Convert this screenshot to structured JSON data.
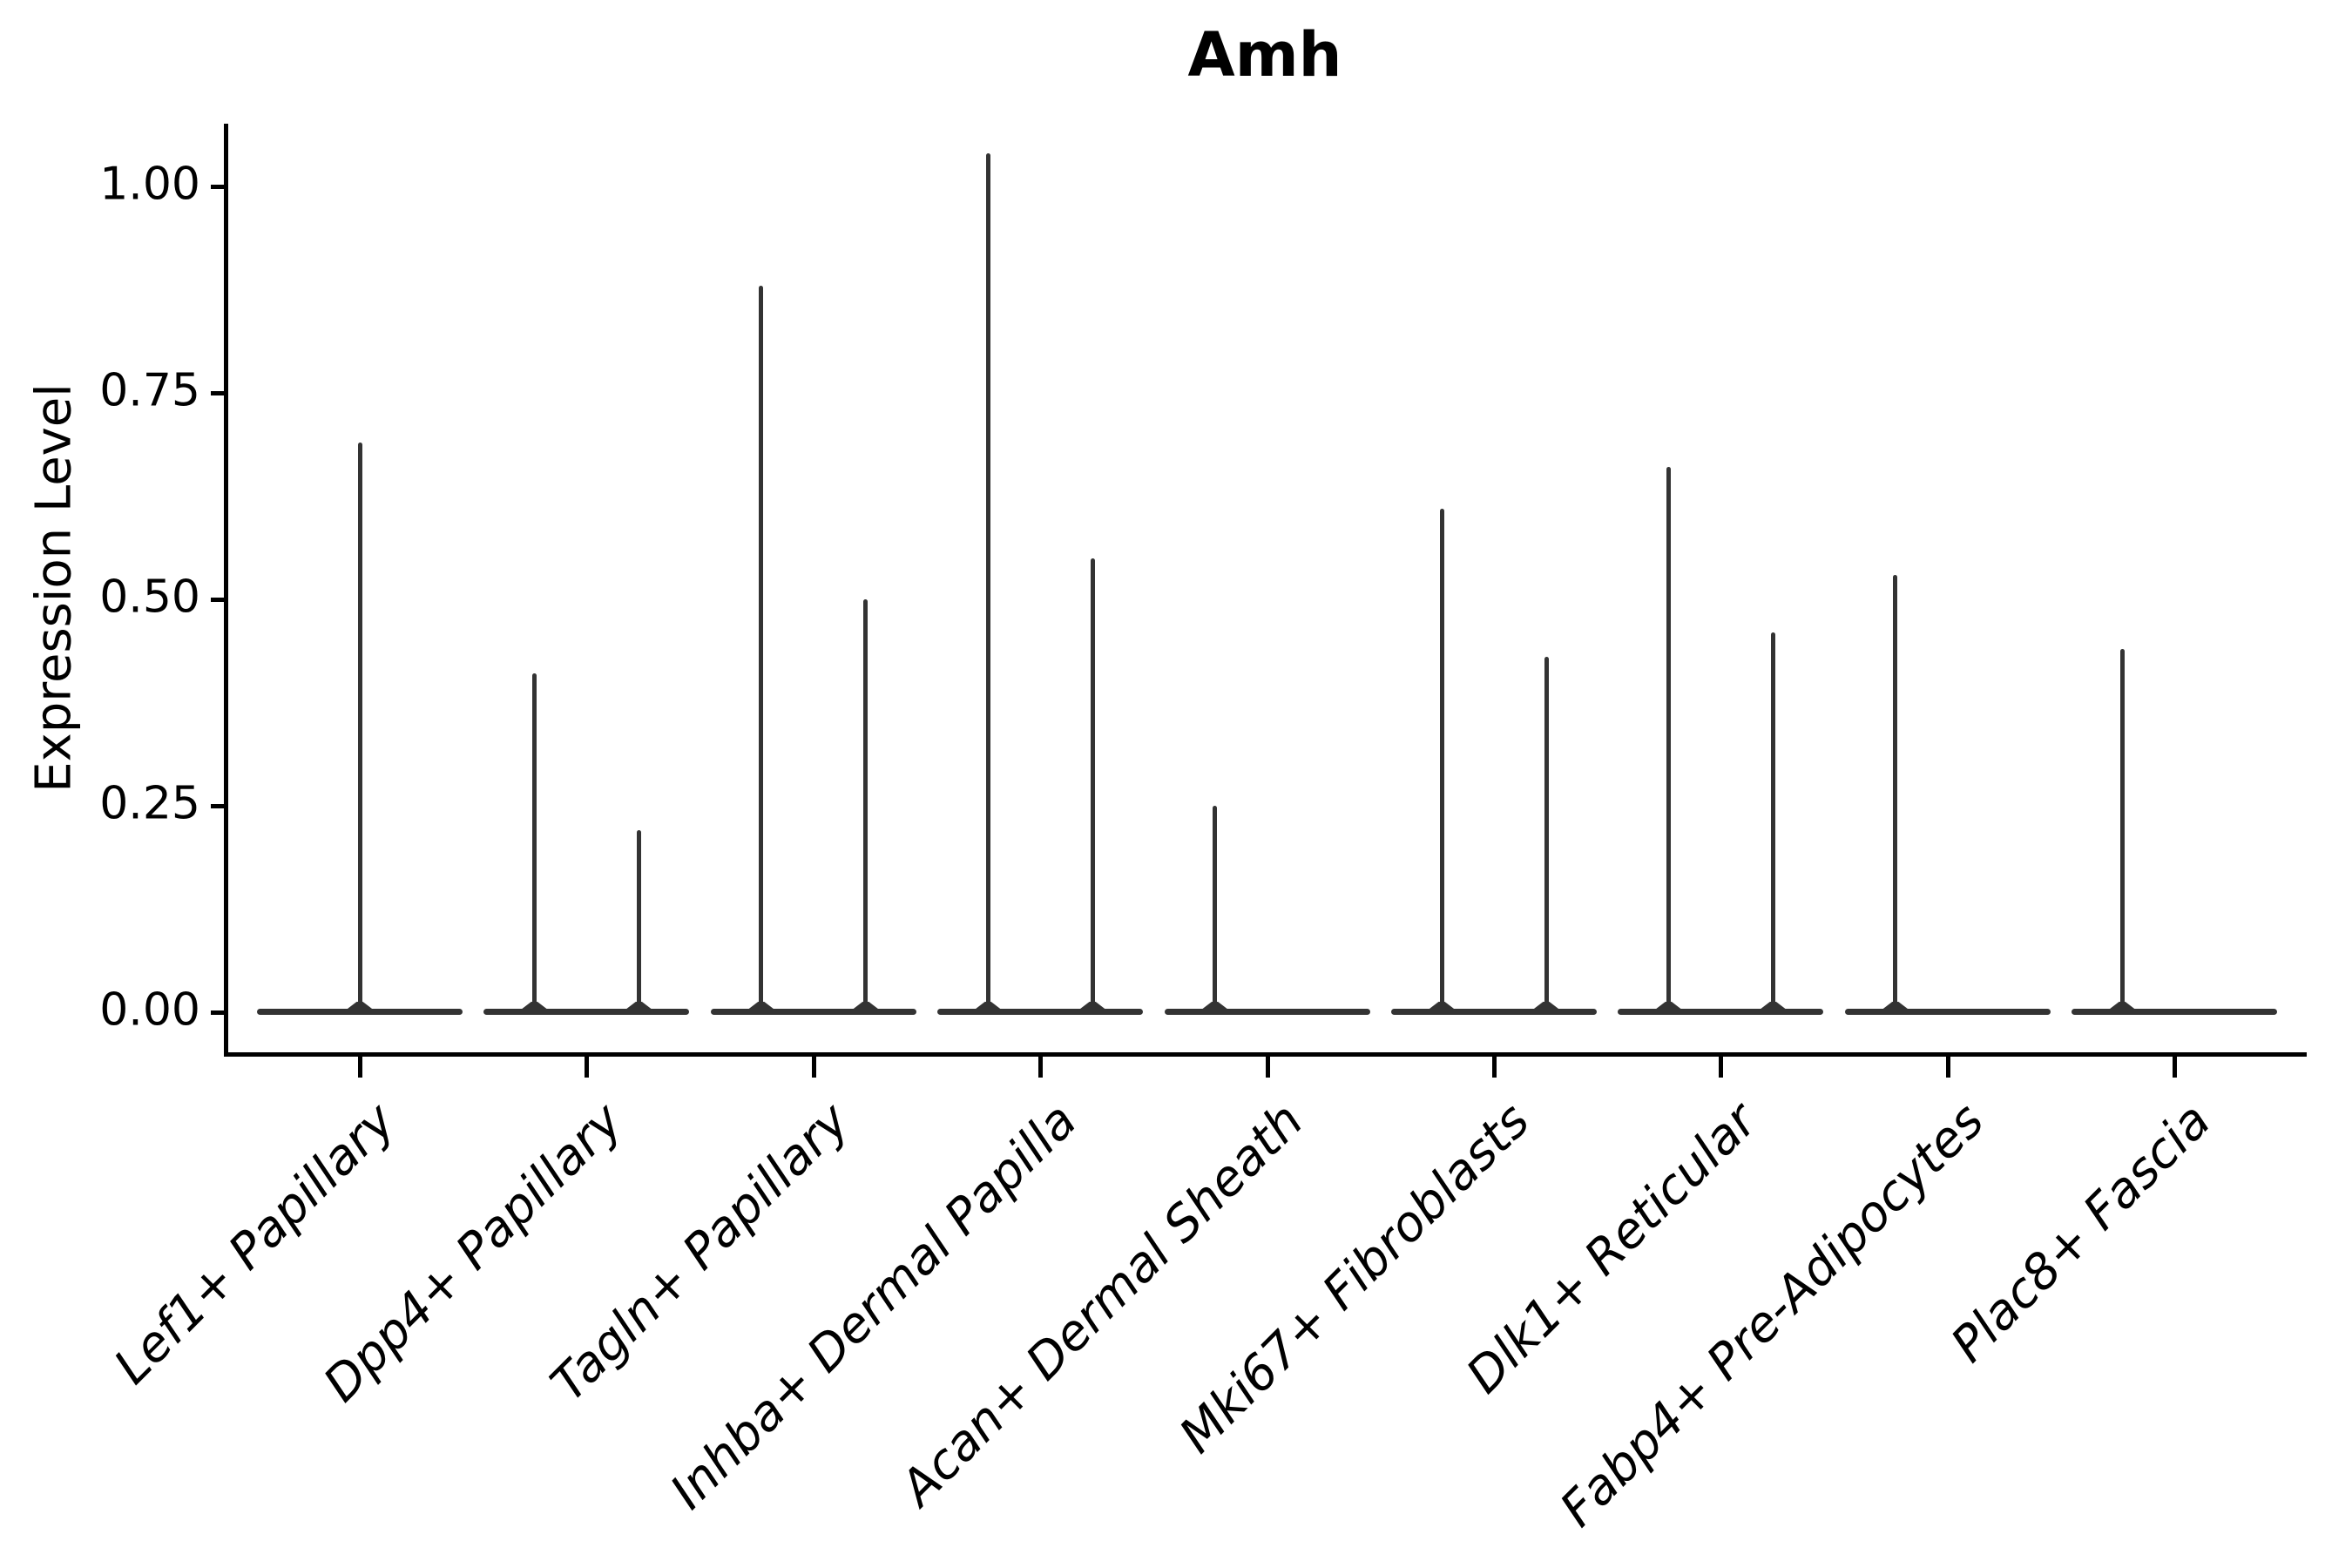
{
  "figure": {
    "title": "Amh",
    "y_axis_label": "Expression Level"
  },
  "chart_data": {
    "type": "violin",
    "title": "Amh",
    "xlabel": "",
    "ylabel": "Expression Level",
    "ylim": [
      -0.05,
      1.08
    ],
    "grid": false,
    "legend": "none",
    "violin_color": "#333333",
    "axis_color": "#000000",
    "yticks": [
      {
        "label": "1.00",
        "value": 1.0
      },
      {
        "label": "0.75",
        "value": 0.75
      },
      {
        "label": "0.50",
        "value": 0.5
      },
      {
        "label": "0.25",
        "value": 0.25
      },
      {
        "label": "0.00",
        "value": 0.0
      }
    ],
    "categories": [
      "Lef1+ Papillary",
      "Dpp4+ Papillary",
      "Tagln+ Papillary",
      "Inhba+ Dermal Papilla",
      "Acan+ Dermal Sheath",
      "Mki67+ Fibroblasts",
      "Dlk1+ Reticular",
      "Fabp4+ Pre-Adipocytes",
      "Plac8+ Fascia"
    ],
    "violins": [
      {
        "category": "Lef1+ Papillary",
        "spikes": [
          {
            "position": "center",
            "max_expression": 0.69
          }
        ]
      },
      {
        "category": "Dpp4+ Papillary",
        "spikes": [
          {
            "position": "left",
            "max_expression": 0.41
          },
          {
            "position": "right",
            "max_expression": 0.22
          }
        ]
      },
      {
        "category": "Tagln+ Papillary",
        "spikes": [
          {
            "position": "left",
            "max_expression": 0.88
          },
          {
            "position": "right",
            "max_expression": 0.5
          }
        ]
      },
      {
        "category": "Inhba+ Dermal Papilla",
        "spikes": [
          {
            "position": "left",
            "max_expression": 1.04
          },
          {
            "position": "right",
            "max_expression": 0.55
          }
        ]
      },
      {
        "category": "Acan+ Dermal Sheath",
        "spikes": [
          {
            "position": "left",
            "max_expression": 0.25
          }
        ]
      },
      {
        "category": "Mki67+ Fibroblasts",
        "spikes": [
          {
            "position": "left",
            "max_expression": 0.61
          },
          {
            "position": "right",
            "max_expression": 0.43
          }
        ]
      },
      {
        "category": "Dlk1+ Reticular",
        "spikes": [
          {
            "position": "left",
            "max_expression": 0.66
          },
          {
            "position": "right",
            "max_expression": 0.46
          }
        ]
      },
      {
        "category": "Fabp4+ Pre-Adipocytes",
        "spikes": [
          {
            "position": "left",
            "max_expression": 0.53
          }
        ]
      },
      {
        "category": "Plac8+ Fascia",
        "spikes": [
          {
            "position": "left",
            "max_expression": 0.44
          }
        ]
      }
    ]
  }
}
